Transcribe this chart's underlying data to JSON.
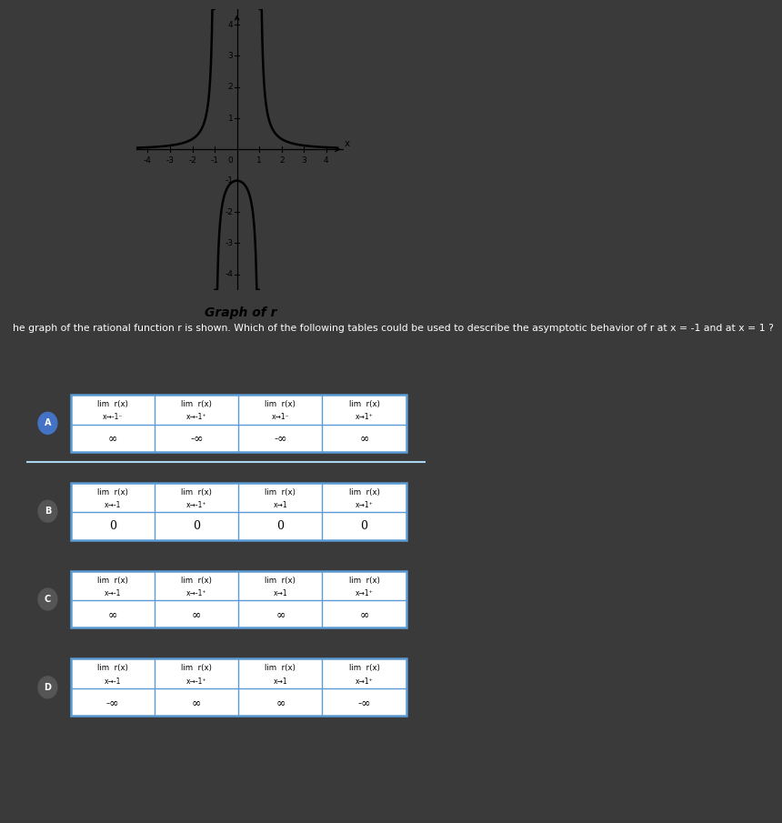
{
  "bg_color": "#3a3a3a",
  "graph_bg": "#ffffff",
  "table_border": "#5b9bd5",
  "title": "Graph of r",
  "xlim": [
    -4.5,
    4.8
  ],
  "ylim": [
    -4.5,
    4.5
  ],
  "xticks": [
    -4,
    -3,
    -2,
    -1,
    1,
    2,
    3,
    4
  ],
  "yticks": [
    -4,
    -3,
    -2,
    -1,
    1,
    2,
    3,
    4
  ],
  "question_text": "he graph of the rational function r is shown. Which of the following tables could be used to describe the asymptotic behavior of r at x = -1 and at x = 1 ?",
  "tables": [
    {
      "label": "A",
      "col1_top": "lim r(x)",
      "col1_sub": "x→-1⁻",
      "col2_top": "lim r(x)",
      "col2_sub": "x→-1⁺",
      "col3_top": "lim r(x)",
      "col3_sub": "x→1⁻",
      "col4_top": "lim r(x)",
      "col4_sub": "x→1⁺",
      "val1": "∞",
      "val2": "-∞",
      "val3": "-∞",
      "val4": "∞",
      "circle_color": "#4472c4"
    },
    {
      "label": "B",
      "col1_top": "lim r(x)",
      "col1_sub": "x→-1",
      "col2_top": "lim r(x)",
      "col2_sub": "x→-1⁺",
      "col3_top": "lim r(x)",
      "col3_sub": "x→1",
      "col4_top": "lim r(x)",
      "col4_sub": "x→1⁺",
      "val1": "0",
      "val2": "0",
      "val3": "0",
      "val4": "0",
      "circle_color": "#555555"
    },
    {
      "label": "C",
      "col1_top": "lim r(x)",
      "col1_sub": "x→-1",
      "col2_top": "lim r(x)",
      "col2_sub": "x→-1⁺",
      "col3_top": "lim r(x)",
      "col3_sub": "x→1",
      "col4_top": "lim r(x)",
      "col4_sub": "x→1⁺",
      "val1": "∞",
      "val2": "∞",
      "val3": "∞",
      "val4": "∞",
      "circle_color": "#555555"
    },
    {
      "label": "D",
      "col1_top": "lim r(x)",
      "col1_sub": "x→-1",
      "col2_top": "lim r(x)",
      "col2_sub": "x→-1⁺",
      "col3_top": "lim r(x)",
      "col3_sub": "x→1",
      "col4_top": "lim r(x)",
      "col4_sub": "x→1⁺",
      "val1": "-∞",
      "val2": "∞",
      "val3": "∞",
      "val4": "-∞",
      "circle_color": "#555555"
    }
  ]
}
